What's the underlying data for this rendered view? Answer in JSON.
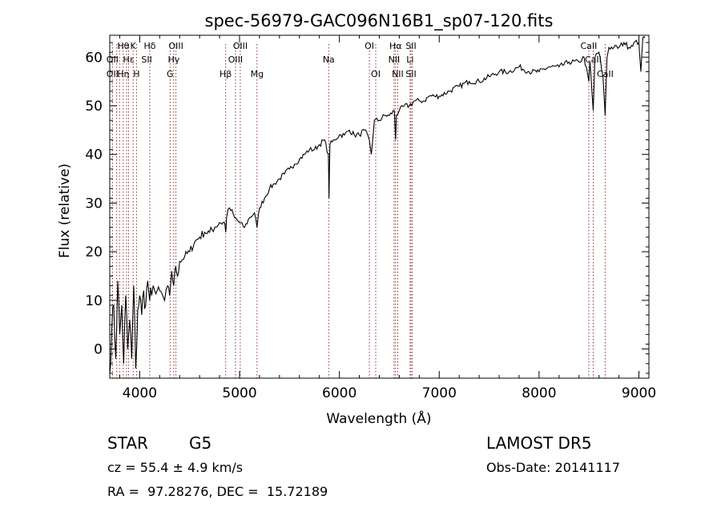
{
  "chart_data": {
    "type": "line",
    "title": "spec-56979-GAC096N16B1_sp07-120.fits",
    "xlabel": "Wavelength (Å)",
    "ylabel": "Flux (relative)",
    "xlim": [
      3700,
      9100
    ],
    "ylim": [
      -6,
      64.5
    ],
    "xticks": [
      4000,
      5000,
      6000,
      7000,
      8000,
      9000
    ],
    "yticks": [
      0,
      10,
      20,
      30,
      40,
      50,
      60
    ],
    "grid": false,
    "series": [
      {
        "x": [
          3700,
          3720,
          3740,
          3760,
          3780,
          3800,
          3820,
          3840,
          3860,
          3880,
          3900,
          3920,
          3940,
          3960,
          3980,
          4000,
          4020,
          4040,
          4060,
          4080,
          4100,
          4120,
          4150,
          4200,
          4250,
          4280,
          4300,
          4320,
          4340,
          4360,
          4380,
          4400,
          4450,
          4500,
          4550,
          4600,
          4650,
          4700,
          4750,
          4800,
          4850,
          4861,
          4870,
          4900,
          4950,
          5000,
          5050,
          5100,
          5150,
          5175,
          5200,
          5250,
          5300,
          5350,
          5400,
          5450,
          5500,
          5550,
          5600,
          5650,
          5700,
          5750,
          5800,
          5850,
          5890,
          5896,
          5905,
          5950,
          6000,
          6050,
          6100,
          6150,
          6200,
          6250,
          6300,
          6320,
          6350,
          6400,
          6450,
          6500,
          6550,
          6563,
          6570,
          6600,
          6650,
          6700,
          6750,
          6800,
          6850,
          6900,
          6950,
          7000,
          7100,
          7200,
          7300,
          7400,
          7500,
          7600,
          7700,
          7800,
          7900,
          8000,
          8100,
          8200,
          8300,
          8400,
          8450,
          8498,
          8510,
          8542,
          8560,
          8600,
          8640,
          8662,
          8680,
          8700,
          8750,
          8800,
          8850,
          8900,
          8950,
          9000,
          9020,
          9040,
          9060
        ],
        "y": [
          -5,
          4,
          9,
          -2,
          14,
          3,
          9,
          -3,
          11,
          0,
          6,
          -2,
          13,
          -4,
          8,
          11,
          7,
          12,
          9,
          14,
          10,
          11,
          12,
          12,
          10,
          13,
          11,
          16,
          13,
          17,
          15,
          18,
          19,
          20,
          22,
          23,
          24,
          24,
          25,
          26,
          26,
          24,
          27,
          29,
          27,
          26,
          25,
          27,
          28,
          25,
          29,
          31,
          33,
          34,
          35,
          36,
          37,
          38,
          39,
          40,
          41,
          41,
          42,
          43,
          40,
          31,
          42,
          43,
          44,
          44,
          45,
          44,
          44,
          45,
          43,
          40,
          47,
          47,
          48,
          48,
          49,
          43,
          48,
          49,
          50,
          50,
          51,
          51,
          51,
          52,
          52,
          52,
          53,
          54,
          55,
          55,
          56,
          57,
          57,
          58,
          57,
          57,
          58,
          58,
          59,
          59,
          60,
          55,
          59,
          49,
          60,
          61,
          56,
          48,
          60,
          62,
          62,
          62,
          63,
          62,
          63,
          63,
          57,
          64,
          64
        ]
      }
    ],
    "lines": {
      "top": [
        "Hθ",
        "K",
        "Hδ",
        "OIII",
        "OIII",
        "OI",
        "Hα",
        "SII",
        "CaII"
      ],
      "mid": [
        "OII",
        "Hε",
        "SII",
        "Hγ",
        "OIII",
        "Na",
        "NII",
        "Li",
        "CaII"
      ],
      "low": [
        "OII",
        "Hη",
        "H",
        "G",
        "Hβ",
        "Mg",
        "OI",
        "NII",
        "SII",
        "CaII"
      ]
    }
  },
  "info": {
    "class": "STAR",
    "subclass": "G5",
    "survey": "LAMOST DR5",
    "cz": "cz = 55.4 ± 4.9 km/s",
    "obsdate": "Obs-Date: 20141117",
    "coords": "RA =  97.28276, DEC =  15.72189"
  }
}
